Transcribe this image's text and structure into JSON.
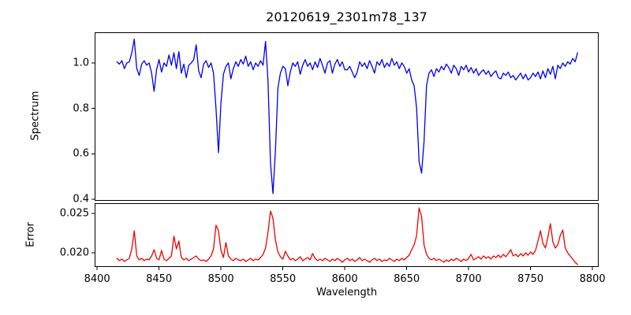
{
  "figure": {
    "title": "20120619_2301m78_137",
    "xlabel": "Wavelength",
    "background": "#ffffff",
    "text_color": "#000000",
    "xticks": [
      {
        "label": "8400",
        "value": 8400
      },
      {
        "label": "8450",
        "value": 8450
      },
      {
        "label": "8500",
        "value": 8500
      },
      {
        "label": "8550",
        "value": 8550
      },
      {
        "label": "8600",
        "value": 8600
      },
      {
        "label": "8650",
        "value": 8650
      },
      {
        "label": "8700",
        "value": 8700
      },
      {
        "label": "8750",
        "value": 8750
      },
      {
        "label": "8800",
        "value": 8800
      }
    ],
    "xlim": [
      8398,
      8805
    ],
    "grid": false,
    "legend": "none"
  },
  "chart_data": [
    {
      "type": "line",
      "panel": "top",
      "ylabel": "Spectrum",
      "color": "#0000ee",
      "ylim": [
        0.393,
        1.135
      ],
      "yticks": [
        {
          "label": "1.0",
          "value": 1.0
        },
        {
          "label": "0.8",
          "value": 0.8
        },
        {
          "label": "0.6",
          "value": 0.6
        },
        {
          "label": "0.4",
          "value": 0.4
        }
      ],
      "x_start": 8416,
      "x_step": 2,
      "annotations": "absorption lines near 8498, 8542, 8662",
      "values": [
        1.005,
        0.995,
        1.01,
        0.975,
        1.0,
        1.005,
        1.045,
        1.105,
        0.975,
        0.945,
        0.995,
        1.01,
        0.99,
        1.0,
        0.955,
        0.875,
        0.97,
        1.015,
        0.96,
        1.0,
        0.985,
        1.035,
        0.99,
        1.045,
        0.975,
        1.05,
        0.955,
        0.995,
        0.935,
        0.99,
        1.0,
        1.015,
        1.08,
        0.965,
        0.935,
        0.995,
        1.01,
        0.98,
        1.0,
        0.955,
        0.8,
        0.605,
        0.825,
        0.95,
        0.985,
        1.0,
        0.93,
        0.975,
        1.005,
        0.985,
        1.015,
        0.995,
        1.03,
        0.985,
        1.005,
        0.97,
        1.0,
        0.985,
        1.01,
        0.99,
        1.095,
        0.92,
        0.56,
        0.425,
        0.615,
        0.89,
        0.955,
        0.985,
        0.975,
        0.9,
        0.96,
        1.0,
        0.985,
        1.005,
        0.95,
        0.99,
        1.015,
        0.985,
        1.0,
        0.97,
        1.005,
        0.98,
        1.02,
        0.99,
        0.955,
        1.0,
        1.01,
        0.955,
        0.995,
        1.015,
        0.985,
        1.005,
        0.97,
        0.97,
        0.985,
        0.96,
        0.935,
        0.96,
        1.005,
        0.985,
        1.0,
        0.975,
        1.01,
        0.985,
        0.955,
        1.005,
        0.99,
        1.015,
        0.98,
        1.0,
        0.985,
        1.02,
        0.99,
        1.005,
        0.975,
        1.0,
        0.985,
        0.955,
        0.975,
        0.925,
        0.9,
        0.8,
        0.565,
        0.515,
        0.655,
        0.9,
        0.955,
        0.97,
        0.94,
        0.975,
        0.96,
        0.985,
        0.97,
        0.995,
        0.98,
        0.955,
        0.99,
        0.975,
        0.945,
        0.985,
        0.97,
        0.99,
        0.96,
        0.98,
        0.955,
        0.975,
        0.945,
        0.96,
        0.97,
        0.95,
        0.965,
        0.94,
        0.955,
        0.965,
        0.935,
        0.93,
        0.955,
        0.945,
        0.96,
        0.935,
        0.945,
        0.925,
        0.94,
        0.955,
        0.93,
        0.95,
        0.925,
        0.935,
        0.955,
        0.94,
        0.96,
        0.93,
        0.965,
        0.935,
        0.975,
        0.95,
        0.985,
        0.93,
        0.99,
        0.975,
        1.0,
        0.985,
        1.005,
        0.995,
        1.02,
        1.005,
        1.045
      ]
    },
    {
      "type": "line",
      "panel": "bottom",
      "ylabel": "Error",
      "color": "#ee0000",
      "ylim": [
        0.0182,
        0.0263
      ],
      "yticks": [
        {
          "label": "0.025",
          "value": 0.025
        },
        {
          "label": "0.020",
          "value": 0.02
        }
      ],
      "x_start": 8416,
      "x_step": 2,
      "annotations": "error peaks near 8430, 8496, 8541, 8661, 8758-8776",
      "values": [
        0.0193,
        0.019,
        0.0192,
        0.0189,
        0.0191,
        0.0193,
        0.0205,
        0.0228,
        0.0196,
        0.0191,
        0.0193,
        0.019,
        0.0192,
        0.0191,
        0.0196,
        0.0204,
        0.0193,
        0.0191,
        0.0203,
        0.0192,
        0.019,
        0.0193,
        0.0196,
        0.0221,
        0.0205,
        0.0215,
        0.0194,
        0.0191,
        0.0193,
        0.019,
        0.0192,
        0.0194,
        0.0196,
        0.0192,
        0.019,
        0.0191,
        0.0189,
        0.0192,
        0.0196,
        0.0205,
        0.0235,
        0.0228,
        0.0203,
        0.0194,
        0.0213,
        0.0196,
        0.0192,
        0.019,
        0.0193,
        0.0191,
        0.019,
        0.0192,
        0.0189,
        0.0191,
        0.0193,
        0.019,
        0.0192,
        0.0191,
        0.0194,
        0.0198,
        0.0206,
        0.0226,
        0.0253,
        0.0244,
        0.0216,
        0.0201,
        0.0195,
        0.0192,
        0.0202,
        0.0196,
        0.0191,
        0.0193,
        0.019,
        0.0192,
        0.0195,
        0.019,
        0.0192,
        0.0194,
        0.0191,
        0.0199,
        0.0193,
        0.019,
        0.0192,
        0.019,
        0.0193,
        0.0191,
        0.0189,
        0.0192,
        0.019,
        0.0193,
        0.0191,
        0.0188,
        0.0191,
        0.0193,
        0.019,
        0.0192,
        0.0189,
        0.0191,
        0.0194,
        0.019,
        0.0192,
        0.019,
        0.0188,
        0.0191,
        0.0193,
        0.019,
        0.0192,
        0.0189,
        0.0191,
        0.019,
        0.0193,
        0.0191,
        0.0189,
        0.0192,
        0.019,
        0.0193,
        0.0191,
        0.0194,
        0.0197,
        0.0204,
        0.021,
        0.0222,
        0.0257,
        0.0246,
        0.021,
        0.0198,
        0.0193,
        0.0191,
        0.0193,
        0.019,
        0.0192,
        0.019,
        0.0188,
        0.0191,
        0.0189,
        0.0192,
        0.019,
        0.0193,
        0.0191,
        0.0189,
        0.0192,
        0.019,
        0.0193,
        0.0198,
        0.0191,
        0.0193,
        0.0195,
        0.0192,
        0.0196,
        0.0193,
        0.0195,
        0.0192,
        0.0196,
        0.0194,
        0.0197,
        0.0194,
        0.0198,
        0.0195,
        0.0199,
        0.0204,
        0.0196,
        0.0198,
        0.0195,
        0.0199,
        0.0196,
        0.02,
        0.0197,
        0.0201,
        0.0198,
        0.0203,
        0.0215,
        0.0228,
        0.0212,
        0.0206,
        0.022,
        0.0237,
        0.0214,
        0.0206,
        0.021,
        0.0222,
        0.0229,
        0.0206,
        0.02,
        0.0196,
        0.0192,
        0.0188,
        0.0185
      ]
    }
  ]
}
